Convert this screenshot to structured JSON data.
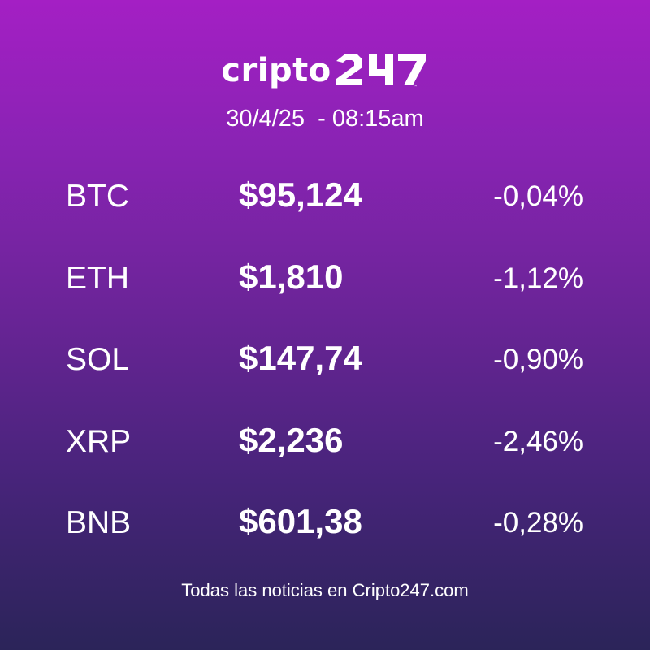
{
  "brand": {
    "wordmark": "cripto",
    "number_mark": "247",
    "trademark": "™"
  },
  "timestamp": "30/4/25  - 08:15am",
  "quotes": [
    {
      "symbol": "BTC",
      "price": "$95,124",
      "change": "-0,04%"
    },
    {
      "symbol": "ETH",
      "price": "$1,810",
      "change": "-1,12%"
    },
    {
      "symbol": "SOL",
      "price": "$147,74",
      "change": "-0,90%"
    },
    {
      "symbol": "XRP",
      "price": "$2,236",
      "change": "-2,46%"
    },
    {
      "symbol": "BNB",
      "price": "$601,38",
      "change": "-0,28%"
    }
  ],
  "footer": "Todas las noticias en Cripto247.com",
  "colors": {
    "gradient_top": "#a41fc4",
    "gradient_bottom": "#2b2459",
    "text": "#ffffff"
  }
}
